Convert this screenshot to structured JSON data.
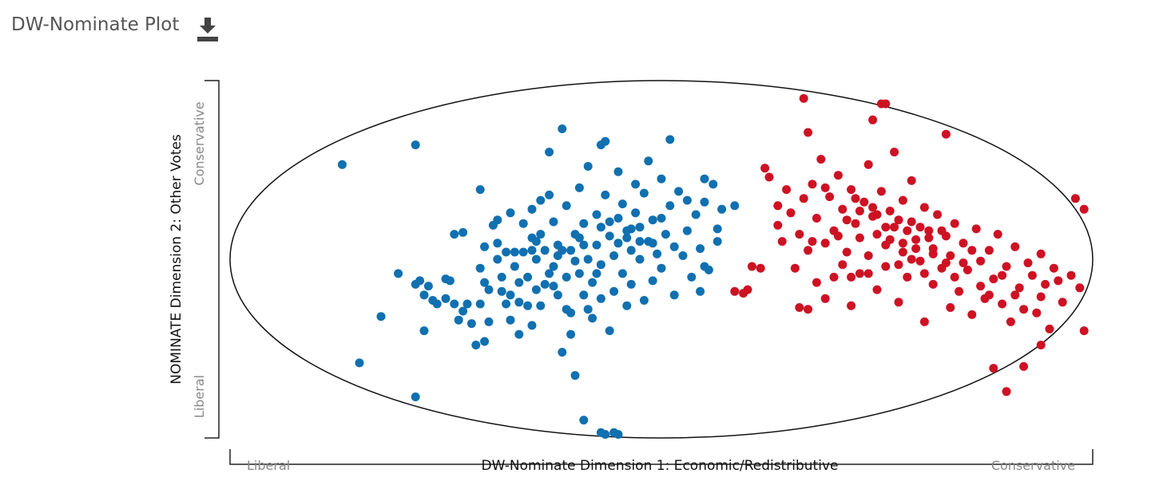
{
  "header": {
    "title": "DW-Nominate Plot",
    "download_icon": "download-icon"
  },
  "chart_data": {
    "type": "scatter",
    "title": "DW-Nominate Plot",
    "xlabel": "DW-Nominate Dimension 1: Economic/Redistributive",
    "ylabel": "NOMINATE Dimension 2: Other Votes",
    "x_end_labels": {
      "left": "Liberal",
      "right": "Conservative"
    },
    "y_end_labels": {
      "bottom": "Liberal",
      "top": "Conservative"
    },
    "xlim": [
      -1,
      1
    ],
    "ylim": [
      -1,
      1
    ],
    "grid": false,
    "boundary": "unit-circle",
    "series": [
      {
        "color": "#1170b0",
        "points": [
          [
            -0.74,
            0.53
          ],
          [
            -0.7,
            -0.58
          ],
          [
            -0.65,
            -0.32
          ],
          [
            -0.61,
            -0.08
          ],
          [
            -0.57,
            -0.14
          ],
          [
            -0.56,
            -0.12
          ],
          [
            -0.54,
            -0.15
          ],
          [
            -0.55,
            -0.2
          ],
          [
            -0.53,
            -0.23
          ],
          [
            -0.52,
            -0.25
          ],
          [
            -0.5,
            -0.22
          ],
          [
            -0.5,
            -0.11
          ],
          [
            -0.49,
            -0.12
          ],
          [
            -0.57,
            -0.77
          ],
          [
            -0.48,
            0.14
          ],
          [
            -0.46,
            0.15
          ],
          [
            -0.48,
            -0.25
          ],
          [
            -0.46,
            -0.29
          ],
          [
            -0.47,
            -0.34
          ],
          [
            -0.45,
            -0.25
          ],
          [
            -0.44,
            -0.36
          ],
          [
            -0.43,
            -0.48
          ],
          [
            -0.42,
            -0.25
          ],
          [
            -0.55,
            -0.4
          ],
          [
            -0.57,
            0.64
          ],
          [
            -0.42,
            0.39
          ],
          [
            -0.41,
            0.07
          ],
          [
            -0.42,
            -0.05
          ],
          [
            -0.41,
            -0.13
          ],
          [
            -0.41,
            -0.46
          ],
          [
            -0.4,
            -0.35
          ],
          [
            -0.39,
            0.19
          ],
          [
            -0.38,
            0.22
          ],
          [
            -0.38,
            0.09
          ],
          [
            -0.38,
            0.0
          ],
          [
            -0.37,
            -0.1
          ],
          [
            -0.37,
            -0.18
          ],
          [
            -0.36,
            -0.25
          ],
          [
            -0.36,
            0.04
          ],
          [
            -0.35,
            0.26
          ],
          [
            -0.35,
            -0.34
          ],
          [
            -0.34,
            0.04
          ],
          [
            -0.34,
            -0.04
          ],
          [
            -0.33,
            -0.13
          ],
          [
            -0.33,
            -0.42
          ],
          [
            -0.32,
            0.04
          ],
          [
            -0.32,
            0.2
          ],
          [
            -0.31,
            -0.26
          ],
          [
            -0.3,
            0.12
          ],
          [
            -0.3,
            0.28
          ],
          [
            -0.3,
            -0.37
          ],
          [
            -0.29,
            -0.17
          ],
          [
            -0.29,
            0.0
          ],
          [
            -0.28,
            0.33
          ],
          [
            -0.28,
            -0.26
          ],
          [
            -0.27,
            0.05
          ],
          [
            -0.27,
            -0.14
          ],
          [
            -0.26,
            0.36
          ],
          [
            -0.26,
            0.6
          ],
          [
            -0.25,
            0.21
          ],
          [
            -0.25,
            -0.04
          ],
          [
            -0.24,
            0.08
          ],
          [
            -0.24,
            -0.2
          ],
          [
            -0.23,
            0.73
          ],
          [
            -0.23,
            -0.52
          ],
          [
            -0.22,
            0.3
          ],
          [
            -0.22,
            -0.1
          ],
          [
            -0.21,
            0.05
          ],
          [
            -0.21,
            -0.3
          ],
          [
            -0.2,
            0.14
          ],
          [
            -0.2,
            -0.65
          ],
          [
            -0.19,
            -0.08
          ],
          [
            -0.19,
            0.4
          ],
          [
            -0.18,
            0.2
          ],
          [
            -0.18,
            -0.2
          ],
          [
            -0.17,
            0.52
          ],
          [
            -0.17,
            0.0
          ],
          [
            -0.16,
            -0.13
          ],
          [
            -0.16,
            -0.33
          ],
          [
            -0.15,
            0.08
          ],
          [
            -0.15,
            0.25
          ],
          [
            -0.14,
            -0.03
          ],
          [
            -0.14,
            -0.22
          ],
          [
            -0.13,
            0.36
          ],
          [
            -0.13,
            0.66
          ],
          [
            -0.12,
            0.13
          ],
          [
            -0.12,
            -0.4
          ],
          [
            -0.11,
            0.02
          ],
          [
            -0.11,
            -0.18
          ],
          [
            -0.1,
            0.23
          ],
          [
            -0.1,
            0.49
          ],
          [
            -0.09,
            -0.08
          ],
          [
            -0.09,
            0.31
          ],
          [
            -0.08,
            -0.26
          ],
          [
            -0.08,
            0.12
          ],
          [
            -0.07,
            0.05
          ],
          [
            -0.07,
            -0.14
          ],
          [
            -0.06,
            0.42
          ],
          [
            -0.06,
            0.26
          ],
          [
            -0.05,
            0.18
          ],
          [
            -0.05,
            0.0
          ],
          [
            -0.04,
            0.37
          ],
          [
            -0.04,
            -0.23
          ],
          [
            -0.03,
            0.1
          ],
          [
            -0.03,
            0.55
          ],
          [
            -0.02,
            -0.12
          ],
          [
            -0.02,
            0.22
          ],
          [
            -0.01,
            0.03
          ],
          [
            0.0,
            0.45
          ],
          [
            0.0,
            -0.05
          ],
          [
            0.01,
            0.14
          ],
          [
            0.02,
            0.3
          ],
          [
            0.03,
            -0.2
          ],
          [
            0.03,
            0.07
          ],
          [
            0.04,
            0.38
          ],
          [
            0.05,
            0.02
          ],
          [
            0.06,
            0.16
          ],
          [
            0.07,
            -0.1
          ],
          [
            0.08,
            0.25
          ],
          [
            0.09,
            0.06
          ],
          [
            0.1,
            0.32
          ],
          [
            0.11,
            -0.06
          ],
          [
            0.13,
            0.1
          ],
          [
            0.14,
            0.28
          ],
          [
            -0.23,
            0.05
          ],
          [
            -0.26,
            -0.08
          ],
          [
            -0.19,
            0.12
          ],
          [
            -0.15,
            -0.08
          ],
          [
            -0.1,
            0.09
          ],
          [
            -0.05,
            0.1
          ],
          [
            -0.14,
            0.18
          ],
          [
            -0.3,
            0.05
          ],
          [
            -0.2,
            -0.01
          ],
          [
            -0.24,
            0.02
          ],
          [
            -0.4,
            -0.17
          ],
          [
            -0.35,
            -0.2
          ],
          [
            -0.31,
            -0.1
          ],
          [
            -0.25,
            -0.15
          ],
          [
            -0.22,
            -0.28
          ],
          [
            -0.17,
            -0.28
          ],
          [
            -0.08,
            0.16
          ],
          [
            -0.02,
            0.09
          ],
          [
            -0.12,
            0.21
          ],
          [
            -0.28,
            0.14
          ],
          [
            -0.33,
            -0.24
          ],
          [
            -0.18,
            0.08
          ],
          [
            0.0,
            0.23
          ],
          [
            0.06,
            0.33
          ],
          [
            0.1,
            0.45
          ],
          [
            0.12,
            0.42
          ],
          [
            0.17,
            0.3
          ],
          [
            0.13,
            0.17
          ],
          [
            0.1,
            -0.04
          ],
          [
            0.09,
            -0.18
          ],
          [
            -0.18,
            -0.9
          ],
          [
            -0.14,
            -0.97
          ],
          [
            -0.13,
            -0.98
          ],
          [
            -0.11,
            -0.97
          ],
          [
            -0.1,
            -0.98
          ],
          [
            0.02,
            0.67
          ],
          [
            -0.14,
            0.64
          ],
          [
            -0.07,
            0.17
          ],
          [
            -0.29,
            0.1
          ],
          [
            -0.21,
            -0.42
          ]
        ]
      },
      {
        "color": "#cd1223",
        "points": [
          [
            0.17,
            -0.18
          ],
          [
            0.19,
            -0.19
          ],
          [
            0.2,
            -0.17
          ],
          [
            0.21,
            -0.04
          ],
          [
            0.23,
            -0.05
          ],
          [
            0.24,
            0.51
          ],
          [
            0.25,
            0.46
          ],
          [
            0.27,
            0.3
          ],
          [
            0.27,
            0.19
          ],
          [
            0.28,
            0.1
          ],
          [
            0.29,
            0.39
          ],
          [
            0.3,
            0.26
          ],
          [
            0.31,
            -0.05
          ],
          [
            0.32,
            -0.27
          ],
          [
            0.32,
            0.14
          ],
          [
            0.33,
            0.34
          ],
          [
            0.34,
            -0.28
          ],
          [
            0.34,
            0.05
          ],
          [
            0.35,
            0.42
          ],
          [
            0.36,
            0.23
          ],
          [
            0.36,
            -0.13
          ],
          [
            0.37,
            0.56
          ],
          [
            0.38,
            0.09
          ],
          [
            0.38,
            -0.22
          ],
          [
            0.39,
            0.35
          ],
          [
            0.4,
            0.16
          ],
          [
            0.4,
            -0.1
          ],
          [
            0.41,
            0.47
          ],
          [
            0.42,
            0.28
          ],
          [
            0.42,
            -0.03
          ],
          [
            0.43,
            0.04
          ],
          [
            0.44,
            0.39
          ],
          [
            0.44,
            -0.26
          ],
          [
            0.45,
            0.2
          ],
          [
            0.46,
            0.12
          ],
          [
            0.46,
            -0.08
          ],
          [
            0.47,
            0.32
          ],
          [
            0.48,
            0.53
          ],
          [
            0.48,
            0.02
          ],
          [
            0.49,
            0.24
          ],
          [
            0.5,
            -0.17
          ],
          [
            0.5,
            0.14
          ],
          [
            0.51,
            0.38
          ],
          [
            0.52,
            0.08
          ],
          [
            0.52,
            -0.04
          ],
          [
            0.53,
            0.27
          ],
          [
            0.54,
            0.6
          ],
          [
            0.54,
            0.18
          ],
          [
            0.55,
            -0.24
          ],
          [
            0.56,
            0.04
          ],
          [
            0.56,
            0.33
          ],
          [
            0.57,
            -0.1
          ],
          [
            0.58,
            0.21
          ],
          [
            0.58,
            0.44
          ],
          [
            0.59,
            0.11
          ],
          [
            0.6,
            -0.01
          ],
          [
            0.61,
            0.29
          ],
          [
            0.61,
            -0.35
          ],
          [
            0.62,
            0.16
          ],
          [
            0.63,
            0.06
          ],
          [
            0.63,
            -0.14
          ],
          [
            0.64,
            0.25
          ],
          [
            0.65,
            -0.05
          ],
          [
            0.66,
            0.13
          ],
          [
            0.67,
            -0.27
          ],
          [
            0.67,
            0.02
          ],
          [
            0.68,
            0.2
          ],
          [
            0.69,
            -0.18
          ],
          [
            0.7,
            0.09
          ],
          [
            0.71,
            -0.06
          ],
          [
            0.72,
            -0.31
          ],
          [
            0.73,
            0.17
          ],
          [
            0.74,
            -0.01
          ],
          [
            0.75,
            -0.22
          ],
          [
            0.76,
            0.05
          ],
          [
            0.77,
            -0.11
          ],
          [
            0.78,
            0.14
          ],
          [
            0.79,
            -0.25
          ],
          [
            0.8,
            -0.04
          ],
          [
            0.81,
            -0.35
          ],
          [
            0.82,
            0.07
          ],
          [
            0.83,
            -0.16
          ],
          [
            0.84,
            -0.28
          ],
          [
            0.86,
            -0.09
          ],
          [
            0.87,
            -0.3
          ],
          [
            0.88,
            0.03
          ],
          [
            0.89,
            -0.14
          ],
          [
            0.9,
            -0.39
          ],
          [
            0.91,
            -0.05
          ],
          [
            0.93,
            -0.24
          ],
          [
            0.95,
            -0.09
          ],
          [
            0.97,
            -0.16
          ],
          [
            0.98,
            -0.4
          ],
          [
            0.35,
            0.1
          ],
          [
            0.38,
            0.4
          ],
          [
            0.41,
            0.13
          ],
          [
            0.45,
            0.34
          ],
          [
            0.49,
            0.29
          ],
          [
            0.52,
            0.18
          ],
          [
            0.55,
            0.22
          ],
          [
            0.57,
            0.16
          ],
          [
            0.6,
            0.18
          ],
          [
            0.59,
            0.06
          ],
          [
            0.62,
            0.12
          ],
          [
            0.65,
            0.16
          ],
          [
            0.43,
            0.22
          ],
          [
            0.46,
            0.27
          ],
          [
            0.5,
            0.25
          ],
          [
            0.53,
            0.11
          ],
          [
            0.56,
            0.09
          ],
          [
            0.58,
            0.0
          ],
          [
            0.63,
            0.03
          ],
          [
            0.66,
            -0.02
          ],
          [
            0.61,
            -0.08
          ],
          [
            0.55,
            -0.03
          ],
          [
            0.48,
            -0.08
          ],
          [
            0.44,
            -0.1
          ],
          [
            0.68,
            -0.1
          ],
          [
            0.7,
            -0.02
          ],
          [
            0.72,
            0.05
          ],
          [
            0.74,
            -0.15
          ],
          [
            0.76,
            -0.2
          ],
          [
            0.79,
            -0.09
          ],
          [
            0.82,
            -0.2
          ],
          [
            0.85,
            -0.02
          ],
          [
            0.88,
            -0.21
          ],
          [
            0.92,
            -0.12
          ],
          [
            0.34,
            0.71
          ],
          [
            0.49,
            0.78
          ],
          [
            0.51,
            0.87
          ],
          [
            0.52,
            0.87
          ],
          [
            0.33,
            0.9
          ],
          [
            0.66,
            0.7
          ],
          [
            0.96,
            0.34
          ],
          [
            0.98,
            0.28
          ],
          [
            0.88,
            -0.48
          ],
          [
            0.8,
            -0.74
          ],
          [
            0.77,
            -0.61
          ],
          [
            0.84,
            -0.6
          ]
        ]
      }
    ]
  }
}
